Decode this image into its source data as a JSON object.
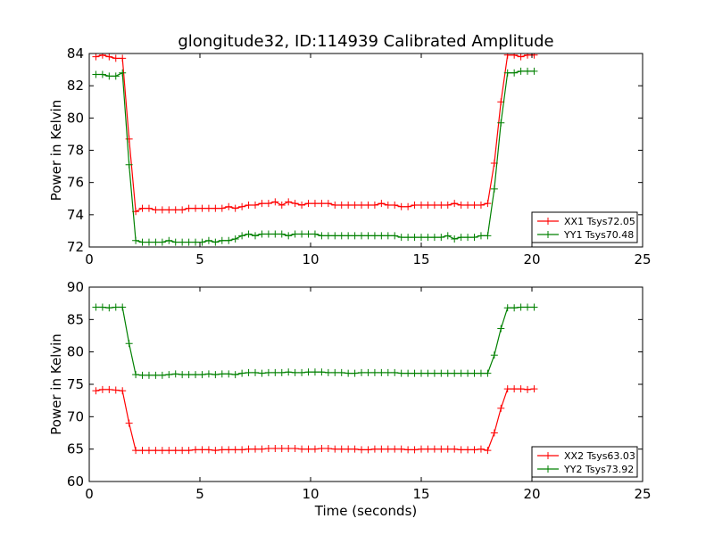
{
  "figure": {
    "title": "glongitude32, ID:114939 Calibrated Amplitude"
  },
  "chart_data": [
    {
      "type": "line",
      "title": "glongitude32, ID:114939 Calibrated Amplitude",
      "xlabel": "",
      "ylabel": "Power in Kelvin",
      "xlim": [
        0,
        25
      ],
      "ylim": [
        72,
        84
      ],
      "xticks": [
        0,
        5,
        10,
        15,
        20,
        25
      ],
      "yticks": [
        72,
        74,
        76,
        78,
        80,
        82,
        84
      ],
      "grid": false,
      "legend_position": "lower-right",
      "series": [
        {
          "name": "XX1 Tsys72.05",
          "color": "#ff0000",
          "marker": "plus",
          "x": [
            0.3,
            0.6,
            0.9,
            1.2,
            1.5,
            1.8,
            2.1,
            2.4,
            2.7,
            3.0,
            3.3,
            3.6,
            3.9,
            4.2,
            4.5,
            4.8,
            5.1,
            5.4,
            5.7,
            6.0,
            6.3,
            6.6,
            6.9,
            7.2,
            7.5,
            7.8,
            8.1,
            8.4,
            8.7,
            9.0,
            9.3,
            9.6,
            9.9,
            10.2,
            10.5,
            10.8,
            11.1,
            11.4,
            11.7,
            12.0,
            12.3,
            12.6,
            12.9,
            13.2,
            13.5,
            13.8,
            14.1,
            14.4,
            14.7,
            15.0,
            15.3,
            15.6,
            15.9,
            16.2,
            16.5,
            16.8,
            17.1,
            17.4,
            17.7,
            18.0,
            18.3,
            18.6,
            18.9,
            19.2,
            19.5,
            19.8,
            20.1
          ],
          "y": [
            83.8,
            83.9,
            83.8,
            83.7,
            83.7,
            78.7,
            74.2,
            74.4,
            74.4,
            74.3,
            74.3,
            74.3,
            74.3,
            74.3,
            74.4,
            74.4,
            74.4,
            74.4,
            74.4,
            74.4,
            74.5,
            74.4,
            74.5,
            74.6,
            74.6,
            74.7,
            74.7,
            74.8,
            74.6,
            74.8,
            74.7,
            74.6,
            74.7,
            74.7,
            74.7,
            74.7,
            74.6,
            74.6,
            74.6,
            74.6,
            74.6,
            74.6,
            74.6,
            74.7,
            74.6,
            74.6,
            74.5,
            74.5,
            74.6,
            74.6,
            74.6,
            74.6,
            74.6,
            74.6,
            74.7,
            74.6,
            74.6,
            74.6,
            74.6,
            74.7,
            77.2,
            81.0,
            83.9,
            83.9,
            83.8,
            83.9,
            83.9
          ]
        },
        {
          "name": "YY1 Tsys70.48",
          "color": "#008000",
          "marker": "plus",
          "x": [
            0.3,
            0.6,
            0.9,
            1.2,
            1.5,
            1.8,
            2.1,
            2.4,
            2.7,
            3.0,
            3.3,
            3.6,
            3.9,
            4.2,
            4.5,
            4.8,
            5.1,
            5.4,
            5.7,
            6.0,
            6.3,
            6.6,
            6.9,
            7.2,
            7.5,
            7.8,
            8.1,
            8.4,
            8.7,
            9.0,
            9.3,
            9.6,
            9.9,
            10.2,
            10.5,
            10.8,
            11.1,
            11.4,
            11.7,
            12.0,
            12.3,
            12.6,
            12.9,
            13.2,
            13.5,
            13.8,
            14.1,
            14.4,
            14.7,
            15.0,
            15.3,
            15.6,
            15.9,
            16.2,
            16.5,
            16.8,
            17.1,
            17.4,
            17.7,
            18.0,
            18.3,
            18.6,
            18.9,
            19.2,
            19.5,
            19.8,
            20.1
          ],
          "y": [
            82.7,
            82.7,
            82.6,
            82.6,
            82.8,
            77.1,
            72.4,
            72.3,
            72.3,
            72.3,
            72.3,
            72.4,
            72.3,
            72.3,
            72.3,
            72.3,
            72.3,
            72.4,
            72.3,
            72.4,
            72.4,
            72.5,
            72.7,
            72.8,
            72.7,
            72.8,
            72.8,
            72.8,
            72.8,
            72.7,
            72.8,
            72.8,
            72.8,
            72.8,
            72.7,
            72.7,
            72.7,
            72.7,
            72.7,
            72.7,
            72.7,
            72.7,
            72.7,
            72.7,
            72.7,
            72.7,
            72.6,
            72.6,
            72.6,
            72.6,
            72.6,
            72.6,
            72.6,
            72.7,
            72.5,
            72.6,
            72.6,
            72.6,
            72.7,
            72.7,
            75.6,
            79.7,
            82.8,
            82.8,
            82.9,
            82.9,
            82.9
          ]
        }
      ]
    },
    {
      "type": "line",
      "title": "",
      "xlabel": "Time (seconds)",
      "ylabel": "Power in Kelvin",
      "xlim": [
        0,
        25
      ],
      "ylim": [
        60,
        90
      ],
      "xticks": [
        0,
        5,
        10,
        15,
        20,
        25
      ],
      "yticks": [
        60,
        65,
        70,
        75,
        80,
        85,
        90
      ],
      "grid": false,
      "legend_position": "lower-right",
      "series": [
        {
          "name": "XX2 Tsys63.03",
          "color": "#ff0000",
          "marker": "plus",
          "x": [
            0.3,
            0.6,
            0.9,
            1.2,
            1.5,
            1.8,
            2.1,
            2.4,
            2.7,
            3.0,
            3.3,
            3.6,
            3.9,
            4.2,
            4.5,
            4.8,
            5.1,
            5.4,
            5.7,
            6.0,
            6.3,
            6.6,
            6.9,
            7.2,
            7.5,
            7.8,
            8.1,
            8.4,
            8.7,
            9.0,
            9.3,
            9.6,
            9.9,
            10.2,
            10.5,
            10.8,
            11.1,
            11.4,
            11.7,
            12.0,
            12.3,
            12.6,
            12.9,
            13.2,
            13.5,
            13.8,
            14.1,
            14.4,
            14.7,
            15.0,
            15.3,
            15.6,
            15.9,
            16.2,
            16.5,
            16.8,
            17.1,
            17.4,
            17.7,
            18.0,
            18.3,
            18.6,
            18.9,
            19.2,
            19.5,
            19.8,
            20.1
          ],
          "y": [
            74.0,
            74.2,
            74.2,
            74.1,
            74.0,
            69.0,
            64.8,
            64.8,
            64.8,
            64.8,
            64.8,
            64.8,
            64.8,
            64.8,
            64.8,
            64.9,
            64.9,
            64.9,
            64.8,
            64.9,
            64.9,
            64.9,
            64.9,
            65.0,
            65.0,
            65.0,
            65.1,
            65.1,
            65.1,
            65.1,
            65.1,
            65.0,
            65.0,
            65.0,
            65.1,
            65.1,
            65.0,
            65.0,
            65.0,
            65.0,
            64.9,
            64.9,
            65.0,
            65.0,
            65.0,
            65.0,
            65.0,
            64.9,
            64.9,
            65.0,
            65.0,
            65.0,
            65.0,
            65.0,
            65.0,
            64.9,
            64.9,
            64.9,
            65.0,
            64.8,
            67.5,
            71.3,
            74.3,
            74.3,
            74.3,
            74.2,
            74.3
          ]
        },
        {
          "name": "YY2 Tsys73.92",
          "color": "#008000",
          "marker": "plus",
          "x": [
            0.3,
            0.6,
            0.9,
            1.2,
            1.5,
            1.8,
            2.1,
            2.4,
            2.7,
            3.0,
            3.3,
            3.6,
            3.9,
            4.2,
            4.5,
            4.8,
            5.1,
            5.4,
            5.7,
            6.0,
            6.3,
            6.6,
            6.9,
            7.2,
            7.5,
            7.8,
            8.1,
            8.4,
            8.7,
            9.0,
            9.3,
            9.6,
            9.9,
            10.2,
            10.5,
            10.8,
            11.1,
            11.4,
            11.7,
            12.0,
            12.3,
            12.6,
            12.9,
            13.2,
            13.5,
            13.8,
            14.1,
            14.4,
            14.7,
            15.0,
            15.3,
            15.6,
            15.9,
            16.2,
            16.5,
            16.8,
            17.1,
            17.4,
            17.7,
            18.0,
            18.3,
            18.6,
            18.9,
            19.2,
            19.5,
            19.8,
            20.1
          ],
          "y": [
            86.9,
            86.9,
            86.8,
            86.9,
            86.9,
            81.3,
            76.5,
            76.4,
            76.4,
            76.4,
            76.4,
            76.5,
            76.6,
            76.5,
            76.5,
            76.5,
            76.5,
            76.6,
            76.5,
            76.6,
            76.6,
            76.5,
            76.7,
            76.8,
            76.8,
            76.7,
            76.8,
            76.8,
            76.8,
            76.9,
            76.8,
            76.8,
            76.9,
            76.9,
            76.9,
            76.8,
            76.8,
            76.8,
            76.7,
            76.7,
            76.8,
            76.8,
            76.8,
            76.8,
            76.8,
            76.8,
            76.7,
            76.7,
            76.7,
            76.7,
            76.7,
            76.7,
            76.7,
            76.7,
            76.7,
            76.7,
            76.7,
            76.7,
            76.7,
            76.7,
            79.5,
            83.6,
            86.8,
            86.8,
            86.9,
            86.9,
            86.9
          ]
        }
      ]
    }
  ]
}
